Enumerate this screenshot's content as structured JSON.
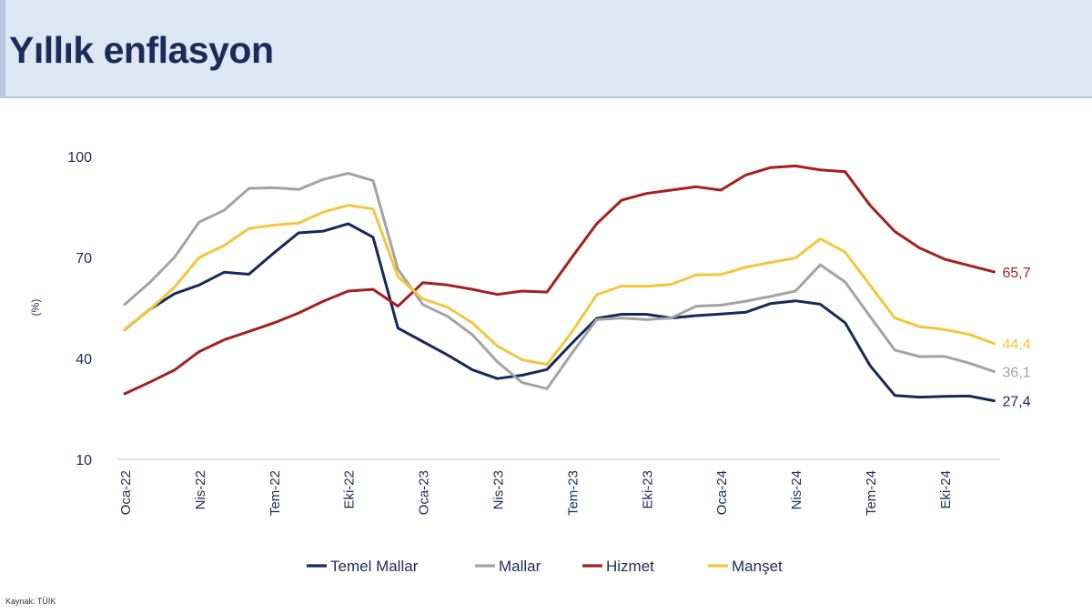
{
  "page": {
    "title": "Yıllık enflasyon",
    "source": "Kaynak: TÜİK"
  },
  "chart_data": {
    "type": "line",
    "ylabel": "(%)",
    "ylim": [
      10,
      100
    ],
    "yticks": [
      10,
      40,
      70,
      100
    ],
    "x": [
      "Oca-22",
      "Şub-22",
      "Mar-22",
      "Nis-22",
      "May-22",
      "Haz-22",
      "Tem-22",
      "Ağu-22",
      "Eyl-22",
      "Eki-22",
      "Kas-22",
      "Ara-22",
      "Oca-23",
      "Şub-23",
      "Mar-23",
      "Nis-23",
      "May-23",
      "Haz-23",
      "Tem-23",
      "Ağu-23",
      "Eyl-23",
      "Eki-23",
      "Kas-23",
      "Ara-23",
      "Oca-24",
      "Şub-24",
      "Mar-24",
      "Nis-24",
      "May-24",
      "Haz-24",
      "Tem-24",
      "Ağu-24",
      "Eyl-24",
      "Eki-24",
      "Kas-24",
      "Ara-24"
    ],
    "xtick_labels": [
      "Oca-22",
      "Nis-22",
      "Tem-22",
      "Eki-22",
      "Oca-23",
      "Nis-23",
      "Tem-23",
      "Eki-23",
      "Oca-24",
      "Nis-24",
      "Tem-24",
      "Eki-24"
    ],
    "grid": false,
    "legend_position": "bottom",
    "series": [
      {
        "name": "Temel Mallar",
        "color": "#15295b",
        "end_label": "27,4",
        "values": [
          48.6,
          54.5,
          59.2,
          61.8,
          65.6,
          65.0,
          71.3,
          77.3,
          77.8,
          80.0,
          76.0,
          49.0,
          45.0,
          41.0,
          36.6,
          34.0,
          35.0,
          36.7,
          44.5,
          51.9,
          53.1,
          53.1,
          52.0,
          52.7,
          53.2,
          53.7,
          56.3,
          57.1,
          56.1,
          50.6,
          37.9,
          29.0,
          28.5,
          28.7,
          28.8,
          27.4
        ]
      },
      {
        "name": "Mallar",
        "color": "#a3a3a3",
        "end_label": "36,1",
        "values": [
          56.0,
          62.5,
          70.0,
          80.5,
          84.0,
          90.5,
          90.7,
          90.2,
          93.2,
          95.0,
          92.8,
          66.5,
          56.0,
          52.5,
          47.0,
          39.0,
          32.8,
          31.0,
          41.5,
          51.5,
          52.0,
          51.5,
          52.0,
          55.5,
          55.8,
          57.0,
          58.4,
          60.0,
          67.8,
          62.7,
          52.5,
          42.5,
          40.5,
          40.6,
          38.6,
          36.1
        ]
      },
      {
        "name": "Hizmet",
        "color": "#a61f1f",
        "end_label": "65,7",
        "values": [
          29.5,
          32.9,
          36.5,
          42.0,
          45.5,
          48.0,
          50.5,
          53.5,
          57.0,
          60.0,
          60.5,
          55.5,
          62.5,
          61.8,
          60.5,
          59.0,
          60.0,
          59.7,
          70.0,
          80.0,
          87.0,
          89.0,
          90.0,
          91.0,
          90.0,
          94.5,
          96.7,
          97.2,
          96.0,
          95.5,
          85.5,
          77.7,
          72.8,
          69.5,
          67.6,
          65.7
        ]
      },
      {
        "name": "Manşet",
        "color": "#f6c53a",
        "end_label": "44,4",
        "values": [
          48.7,
          54.4,
          61.1,
          70.0,
          73.5,
          78.6,
          79.6,
          80.2,
          83.5,
          85.5,
          84.4,
          64.3,
          57.7,
          55.2,
          50.5,
          43.7,
          39.6,
          38.2,
          47.8,
          58.9,
          61.5,
          61.4,
          62.0,
          64.8,
          64.9,
          67.1,
          68.5,
          69.8,
          75.5,
          71.6,
          61.8,
          52.0,
          49.4,
          48.6,
          47.1,
          44.4
        ]
      }
    ]
  }
}
